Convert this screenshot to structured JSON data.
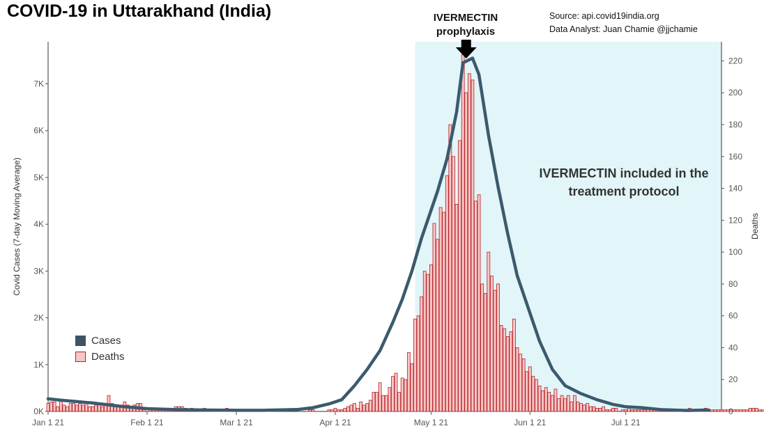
{
  "title": "COVID-19 in Uttarakhand (India)",
  "source_line1": "Source: api.covid19india.org",
  "source_line2": "Data Analyst:  Juan Chamie @jjchamie",
  "annotation_prophylaxis": [
    "IVERMECTIN",
    "prophylaxis"
  ],
  "annotation_treatment": [
    "IVERMECTIN included in the",
    "treatment protocol"
  ],
  "colors": {
    "cases_line": "#3b5a6e",
    "cases_swatch": "#3c5366",
    "deaths_fill": "#f7c6c6",
    "deaths_stroke": "#b52024",
    "shade": "#e2f5f8",
    "arrow": "#000000"
  },
  "chart_data": {
    "type": "bar+line",
    "x_axis": {
      "type": "date",
      "range": [
        "2021-01-01",
        "2021-07-31"
      ],
      "tick_labels": [
        "Jan 1 21",
        "Feb 1 21",
        "Mar 1 21",
        "Apr 1 21",
        "May 1 21",
        "Jun 1 21",
        "Jul 1 21"
      ],
      "tick_dates": [
        "2021-01-01",
        "2021-02-01",
        "2021-03-01",
        "2021-04-01",
        "2021-05-01",
        "2021-06-01",
        "2021-07-01"
      ]
    },
    "y_left": {
      "label": "Covid Cases (7-day Moving Average)",
      "range": [
        0,
        7900
      ],
      "ticks": [
        0,
        1000,
        2000,
        3000,
        4000,
        5000,
        6000,
        7000
      ],
      "tick_labels": [
        "0K",
        "1K",
        "2K",
        "3K",
        "4K",
        "5K",
        "6K",
        "7K"
      ]
    },
    "y_right": {
      "label": "Deaths",
      "range": [
        0,
        232
      ],
      "ticks": [
        0,
        20,
        40,
        60,
        80,
        100,
        120,
        140,
        160,
        180,
        200,
        220
      ],
      "tick_labels": [
        "0",
        "20",
        "40",
        "60",
        "80",
        "100",
        "120",
        "140",
        "160",
        "180",
        "200",
        "220"
      ]
    },
    "shaded_region": [
      "2021-04-26",
      "2021-07-31"
    ],
    "prophylaxis_marker_date": "2021-05-12",
    "series": [
      {
        "name": "Cases",
        "type": "line",
        "axis": "left",
        "points": [
          [
            "2021-01-01",
            270
          ],
          [
            "2021-01-05",
            240
          ],
          [
            "2021-01-10",
            210
          ],
          [
            "2021-01-15",
            180
          ],
          [
            "2021-01-20",
            140
          ],
          [
            "2021-01-25",
            100
          ],
          [
            "2021-02-01",
            60
          ],
          [
            "2021-02-10",
            40
          ],
          [
            "2021-02-20",
            30
          ],
          [
            "2021-03-01",
            25
          ],
          [
            "2021-03-10",
            25
          ],
          [
            "2021-03-20",
            40
          ],
          [
            "2021-03-25",
            80
          ],
          [
            "2021-03-30",
            160
          ],
          [
            "2021-04-03",
            250
          ],
          [
            "2021-04-07",
            550
          ],
          [
            "2021-04-11",
            900
          ],
          [
            "2021-04-15",
            1300
          ],
          [
            "2021-04-19",
            1900
          ],
          [
            "2021-04-22",
            2400
          ],
          [
            "2021-04-25",
            3000
          ],
          [
            "2021-04-28",
            3700
          ],
          [
            "2021-05-01",
            4300
          ],
          [
            "2021-05-03",
            4700
          ],
          [
            "2021-05-06",
            5400
          ],
          [
            "2021-05-09",
            6400
          ],
          [
            "2021-05-11",
            7450
          ],
          [
            "2021-05-14",
            7550
          ],
          [
            "2021-05-16",
            7200
          ],
          [
            "2021-05-19",
            5900
          ],
          [
            "2021-05-22",
            4800
          ],
          [
            "2021-05-25",
            3800
          ],
          [
            "2021-05-28",
            2900
          ],
          [
            "2021-06-01",
            2100
          ],
          [
            "2021-06-04",
            1500
          ],
          [
            "2021-06-08",
            900
          ],
          [
            "2021-06-12",
            550
          ],
          [
            "2021-06-17",
            380
          ],
          [
            "2021-06-22",
            250
          ],
          [
            "2021-06-27",
            150
          ],
          [
            "2021-07-01",
            100
          ],
          [
            "2021-07-06",
            80
          ],
          [
            "2021-07-12",
            40
          ],
          [
            "2021-07-20",
            20
          ],
          [
            "2021-07-27",
            30
          ]
        ]
      },
      {
        "name": "Deaths",
        "type": "bar",
        "axis": "right",
        "start_date": "2021-01-01",
        "values": [
          5,
          6,
          6,
          3,
          7,
          4,
          3,
          5,
          5,
          4,
          5,
          4,
          5,
          3,
          3,
          4,
          5,
          3,
          4,
          10,
          5,
          4,
          3,
          4,
          6,
          4,
          3,
          4,
          5,
          5,
          1,
          0,
          2,
          1,
          1,
          2,
          1,
          2,
          1,
          2,
          3,
          3,
          3,
          2,
          1,
          2,
          1,
          1,
          1,
          2,
          1,
          1,
          1,
          1,
          1,
          1,
          2,
          1,
          1,
          0,
          0,
          0,
          0,
          0,
          0,
          0,
          0,
          0,
          0,
          0,
          0,
          0,
          0,
          0,
          0,
          0,
          0,
          0,
          0,
          0,
          0,
          0,
          1,
          1,
          0,
          0,
          0,
          0,
          1,
          1,
          2,
          1,
          1,
          2,
          3,
          4,
          5,
          2,
          6,
          4,
          5,
          7,
          12,
          12,
          18,
          10,
          10,
          15,
          22,
          24,
          12,
          21,
          20,
          37,
          30,
          58,
          60,
          72,
          88,
          86,
          92,
          118,
          108,
          128,
          125,
          148,
          180,
          160,
          130,
          170,
          224,
          200,
          212,
          208,
          132,
          136,
          80,
          74,
          100,
          85,
          76,
          80,
          54,
          52,
          47,
          50,
          58,
          40,
          36,
          33,
          25,
          28,
          22,
          20,
          16,
          13,
          15,
          12,
          10,
          14,
          8,
          10,
          8,
          10,
          6,
          10,
          6,
          5,
          4,
          5,
          3,
          3,
          2,
          2,
          3,
          1,
          1,
          2,
          2,
          0,
          1,
          1,
          2,
          1,
          1,
          1,
          1,
          1,
          2,
          2,
          2,
          1,
          1,
          1,
          1,
          1,
          1,
          1,
          1,
          1,
          1,
          2,
          1,
          1,
          1,
          1,
          2,
          1,
          1,
          1,
          1,
          1,
          1,
          1,
          1,
          1,
          1,
          1,
          1,
          1,
          2,
          2,
          2,
          1,
          1,
          1,
          1,
          1,
          1,
          1,
          1,
          1,
          1,
          1
        ]
      }
    ]
  }
}
